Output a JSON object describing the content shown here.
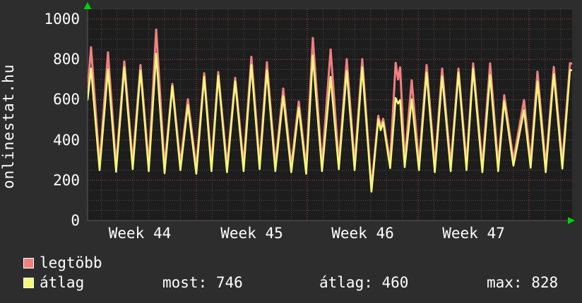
{
  "brand": "onlinestat.hu",
  "legend": [
    {
      "label": "legtöbb",
      "color": "#f08080"
    },
    {
      "label": "átlag",
      "color": "#f6f67a"
    }
  ],
  "stats": [
    {
      "text": "most: 746"
    },
    {
      "text": "átlag: 460"
    },
    {
      "text": "max: 828"
    }
  ],
  "colors": {
    "background": "#2d2d2d",
    "plot_background": "#1d1d1d",
    "grid_minor": "#4c4c4c",
    "grid_major": "#a84848",
    "axis": "#5a5a5a",
    "arrow": "#00d400",
    "text": "#ffffff"
  },
  "chart_data": {
    "type": "line",
    "title": "",
    "xlabel": "",
    "ylabel": "",
    "ylim": [
      0,
      1050
    ],
    "grid": true,
    "legend_position": "bottom-left",
    "y_ticks": [
      0,
      200,
      400,
      600,
      800,
      1000
    ],
    "x_tick_labels": [
      "Week 44",
      "Week 45",
      "Week 46",
      "Week 47"
    ],
    "x_unit": "days",
    "x_days": [
      0.0,
      0.22,
      0.76,
      1.29,
      1.8,
      2.32,
      2.85,
      3.34,
      3.86,
      4.33,
      4.86,
      5.35,
      5.86,
      6.33,
      6.86,
      7.36,
      7.82,
      8.25,
      8.8,
      9.32,
      9.85,
      10.34,
      10.86,
      11.32,
      11.85,
      12.35,
      12.86,
      13.33,
      13.8,
      14.22,
      14.8,
      15.34,
      15.86,
      16.36,
      16.86,
      17.34,
      17.92,
      18.35,
      18.5,
      18.66,
      19.1,
      19.45,
      19.6,
      19.73,
      20.02,
      20.46,
      20.92,
      21.4,
      21.92,
      22.38,
      22.92,
      23.41,
      23.92,
      24.34,
      24.92,
      25.41,
      25.92,
      26.3,
      26.88,
      27.55,
      27.97,
      28.4,
      28.92,
      29.43,
      29.97,
      30.45,
      30.63
    ],
    "series": [
      {
        "name": "legtöbb",
        "color": "#f08080",
        "values": [
          640,
          860,
          278,
          835,
          270,
          790,
          285,
          772,
          275,
          948,
          265,
          678,
          280,
          602,
          262,
          731,
          275,
          737,
          270,
          708,
          275,
          813,
          285,
          786,
          275,
          655,
          270,
          591,
          262,
          906,
          275,
          849,
          285,
          801,
          280,
          801,
          160,
          520,
          465,
          505,
          290,
          783,
          700,
          760,
          295,
          696,
          280,
          772,
          270,
          754,
          275,
          754,
          280,
          780,
          270,
          780,
          275,
          622,
          300,
          598,
          292,
          739,
          270,
          762,
          288,
          781,
          778
        ]
      },
      {
        "name": "átlag",
        "color": "#f6f67a",
        "values": [
          600,
          755,
          250,
          750,
          242,
          760,
          255,
          745,
          245,
          828,
          235,
          667,
          250,
          573,
          232,
          713,
          245,
          719,
          240,
          690,
          245,
          772,
          255,
          746,
          245,
          617,
          240,
          561,
          232,
          819,
          245,
          713,
          255,
          743,
          250,
          760,
          143,
          503,
          448,
          488,
          260,
          608,
          580,
          598,
          265,
          602,
          250,
          734,
          240,
          716,
          245,
          734,
          250,
          754,
          240,
          722,
          245,
          593,
          272,
          548,
          262,
          690,
          240,
          727,
          258,
          746,
          746
        ]
      }
    ],
    "summary": {
      "most": 746,
      "atlag": 460,
      "max": 828
    }
  }
}
